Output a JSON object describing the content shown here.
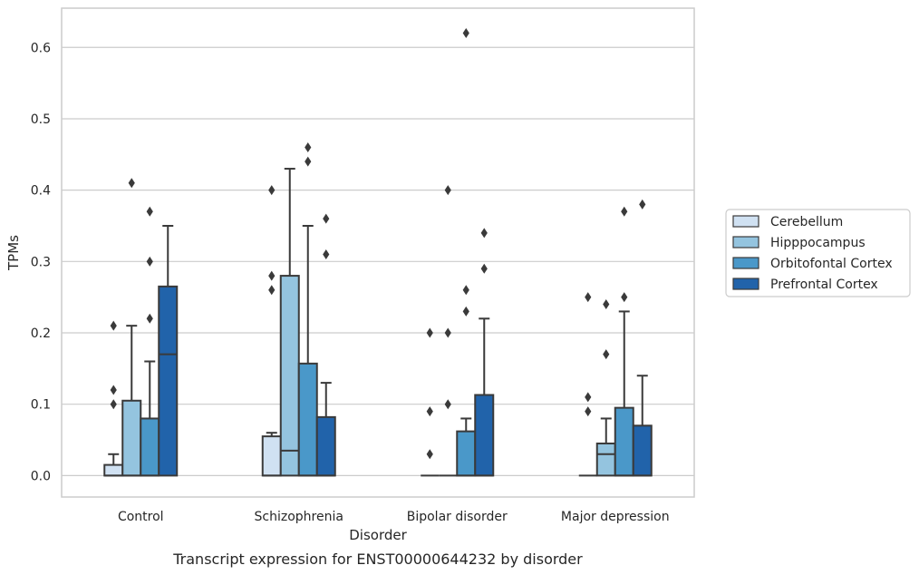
{
  "chart_data": {
    "type": "box",
    "caption": "Transcript expression for ENST00000644232 by disorder",
    "xlabel": "Disorder",
    "ylabel": "TPMs",
    "ylim": [
      -0.03,
      0.655
    ],
    "yticks": [
      0.0,
      0.1,
      0.2,
      0.3,
      0.4,
      0.5,
      0.6
    ],
    "ytick_labels": [
      "0.0",
      "0.1",
      "0.2",
      "0.3",
      "0.4",
      "0.5",
      "0.6"
    ],
    "grid": "horizontal",
    "legend_position": "right",
    "categories": [
      "Control",
      "Schizophrenia",
      "Bipolar disorder",
      "Major depression"
    ],
    "series": [
      {
        "name": "Cerebellum",
        "color": "#d0e1f2",
        "boxes": [
          {
            "q1": 0.0,
            "median": 0.0,
            "q3": 0.015,
            "whisker_low": 0.0,
            "whisker_high": 0.03,
            "outliers": [
              0.1,
              0.12,
              0.21
            ]
          },
          {
            "q1": 0.0,
            "median": 0.0,
            "q3": 0.055,
            "whisker_low": 0.0,
            "whisker_high": 0.06,
            "outliers": [
              0.26,
              0.28,
              0.4
            ]
          },
          {
            "q1": 0.0,
            "median": 0.0,
            "q3": 0.0,
            "whisker_low": 0.0,
            "whisker_high": 0.0,
            "outliers": [
              0.03,
              0.09,
              0.2
            ]
          },
          {
            "q1": 0.0,
            "median": 0.0,
            "q3": 0.0,
            "whisker_low": 0.0,
            "whisker_high": 0.0,
            "outliers": [
              0.09,
              0.11,
              0.25
            ]
          }
        ]
      },
      {
        "name": "Hipppocampus",
        "color": "#94c4df",
        "boxes": [
          {
            "q1": 0.0,
            "median": 0.0,
            "q3": 0.105,
            "whisker_low": 0.0,
            "whisker_high": 0.21,
            "outliers": [
              0.41
            ]
          },
          {
            "q1": 0.0,
            "median": 0.035,
            "q3": 0.28,
            "whisker_low": 0.0,
            "whisker_high": 0.43,
            "outliers": []
          },
          {
            "q1": 0.0,
            "median": 0.0,
            "q3": 0.0,
            "whisker_low": 0.0,
            "whisker_high": 0.0,
            "outliers": [
              0.1,
              0.2,
              0.4
            ]
          },
          {
            "q1": 0.0,
            "median": 0.03,
            "q3": 0.045,
            "whisker_low": 0.0,
            "whisker_high": 0.08,
            "outliers": [
              0.17,
              0.24
            ]
          }
        ]
      },
      {
        "name": "Orbitofontal Cortex",
        "color": "#4a98c9",
        "boxes": [
          {
            "q1": 0.0,
            "median": 0.0,
            "q3": 0.08,
            "whisker_low": 0.0,
            "whisker_high": 0.16,
            "outliers": [
              0.22,
              0.3,
              0.37
            ]
          },
          {
            "q1": 0.0,
            "median": 0.0,
            "q3": 0.157,
            "whisker_low": 0.0,
            "whisker_high": 0.35,
            "outliers": [
              0.44,
              0.46
            ]
          },
          {
            "q1": 0.0,
            "median": 0.0,
            "q3": 0.062,
            "whisker_low": 0.0,
            "whisker_high": 0.08,
            "outliers": [
              0.23,
              0.26,
              0.62
            ]
          },
          {
            "q1": 0.0,
            "median": 0.0,
            "q3": 0.095,
            "whisker_low": 0.0,
            "whisker_high": 0.23,
            "outliers": [
              0.25,
              0.37
            ]
          }
        ]
      },
      {
        "name": "Prefrontal Cortex",
        "color": "#2163aa",
        "boxes": [
          {
            "q1": 0.0,
            "median": 0.17,
            "q3": 0.265,
            "whisker_low": 0.0,
            "whisker_high": 0.35,
            "outliers": []
          },
          {
            "q1": 0.0,
            "median": 0.0,
            "q3": 0.082,
            "whisker_low": 0.0,
            "whisker_high": 0.13,
            "outliers": [
              0.31,
              0.36
            ]
          },
          {
            "q1": 0.0,
            "median": 0.0,
            "q3": 0.113,
            "whisker_low": 0.0,
            "whisker_high": 0.22,
            "outliers": [
              0.29,
              0.34
            ]
          },
          {
            "q1": 0.0,
            "median": 0.0,
            "q3": 0.07,
            "whisker_low": 0.0,
            "whisker_high": 0.14,
            "outliers": [
              0.38
            ]
          }
        ]
      }
    ]
  },
  "colors": {
    "axis_frame": "#cccccc",
    "grid": "#cccccc",
    "box_edge": "#3a3a3a",
    "text": "#262626"
  }
}
